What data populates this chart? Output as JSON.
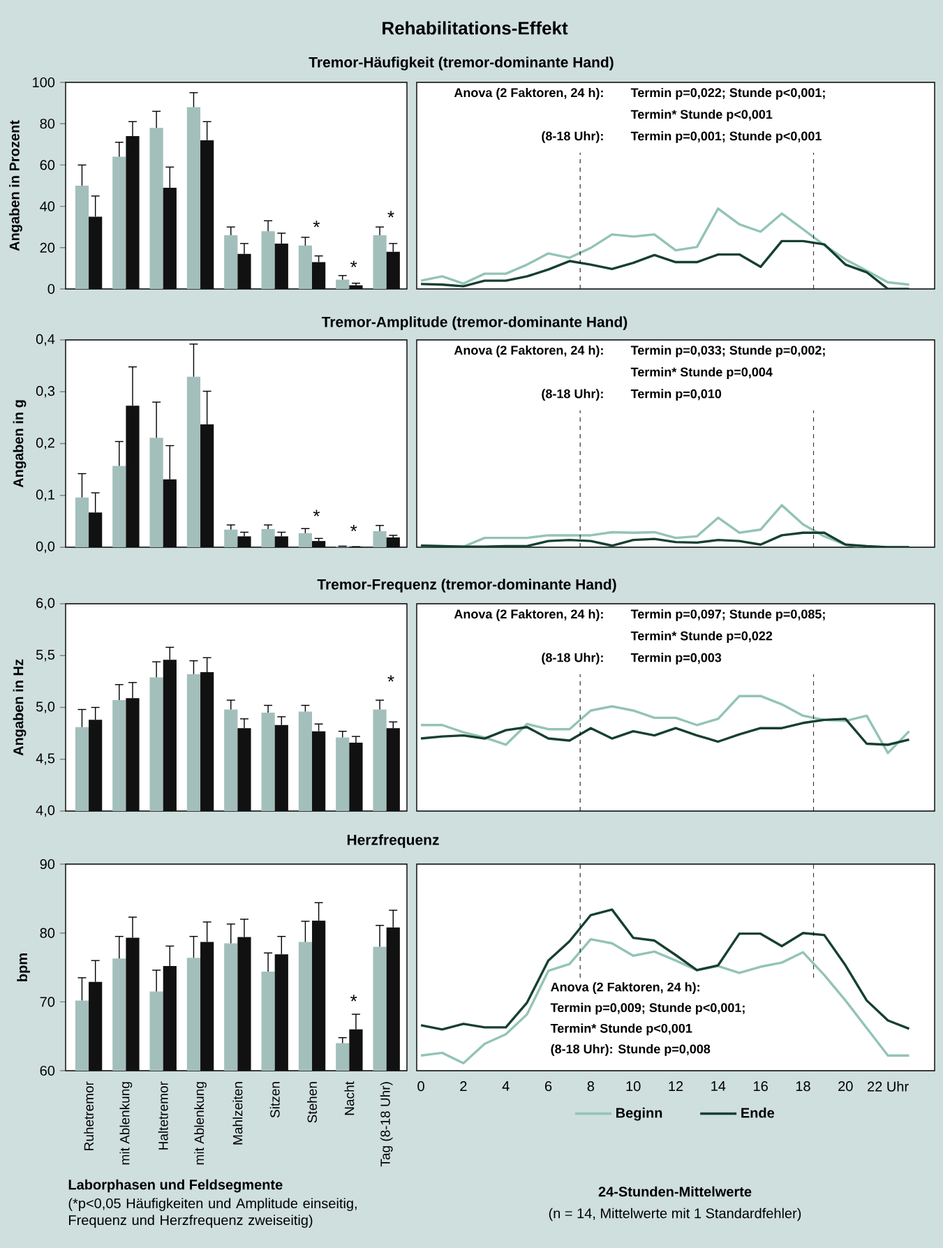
{
  "chart_data": [
    {
      "type": "other",
      "title": "Rehabilitations-Effekt"
    },
    {
      "type": "bar",
      "title": "Tremor-Häufigkeit (tremor-dominante Hand)",
      "ylabel": "Angaben in Prozent",
      "categories": [
        null,
        null,
        null,
        null,
        null,
        null,
        null,
        null,
        null
      ],
      "series": [
        {
          "color": "#a3bfbb",
          "values": [
            50,
            64,
            78,
            88,
            26,
            28,
            21,
            4.5,
            26
          ],
          "errors": [
            [
              50,
              60
            ],
            [
              64,
              71
            ],
            [
              78,
              86
            ],
            [
              88,
              95
            ],
            [
              26,
              30
            ],
            [
              28,
              33
            ],
            [
              21,
              25
            ],
            [
              4.5,
              6.5
            ],
            [
              26,
              30
            ]
          ]
        },
        {
          "color": "#111111",
          "values": [
            35,
            74,
            49,
            72,
            17,
            22,
            13,
            1.8,
            18
          ],
          "errors": [
            [
              35,
              45
            ],
            [
              74,
              81
            ],
            [
              49,
              59
            ],
            [
              72,
              81
            ],
            [
              17,
              22
            ],
            [
              22,
              27
            ],
            [
              13,
              16
            ],
            [
              1.8,
              2.8
            ],
            [
              18,
              22
            ]
          ]
        }
      ],
      "ylim": [
        0,
        100
      ],
      "yticks": [
        0,
        20,
        40,
        60,
        80,
        100
      ],
      "tick_labels": "y",
      "annotations": [
        "*",
        "*",
        "*"
      ]
    },
    {
      "type": "line",
      "x": [
        0,
        1,
        2,
        3,
        4,
        5,
        6,
        7,
        8,
        9,
        10,
        11,
        12,
        13,
        14,
        15,
        16,
        17,
        18,
        19,
        20,
        21,
        22,
        23
      ],
      "series": [
        {
          "color": "#93c3b8",
          "values": [
            4.0,
            6.1,
            2.6,
            7.4,
            7.4,
            11.8,
            17.2,
            15.1,
            19.9,
            26.4,
            25.4,
            26.4,
            18.7,
            20.3,
            38.9,
            31.3,
            27.7,
            36.5,
            28.9,
            21.2,
            14.3,
            8.9,
            3.2,
            2.1
          ]
        },
        {
          "color": "#16402f",
          "values": [
            2.4,
            2.1,
            1.3,
            4.0,
            4.0,
            6.1,
            9.4,
            13.5,
            11.8,
            9.7,
            12.6,
            16.4,
            13.0,
            13.0,
            16.7,
            16.7,
            10.7,
            23.2,
            23.2,
            21.6,
            11.8,
            8.1,
            0.0,
            0.0
          ]
        }
      ],
      "xlim": [
        -0.2,
        24.2
      ],
      "ylim": [
        0,
        100
      ],
      "tick_labels": false,
      "line_style": "solid",
      "ref_lines": [
        {
          "axis": "x",
          "value": 7.5,
          "color": "#000000",
          "line_style": "dashed"
        },
        {
          "axis": "x",
          "value": 18.5,
          "color": "#000000",
          "line_style": "dashed"
        }
      ],
      "annotations": [
        "Anova (2 Faktoren, 24 h):",
        "Termin p=0,022; Stunde p<0,001;",
        "Termin* Stunde p<0,001",
        "(8-18 Uhr):",
        "Termin p=0,001; Stunde p<0,001"
      ]
    },
    {
      "type": "bar",
      "title": "Tremor-Amplitude (tremor-dominante Hand)",
      "ylabel": "Angaben in g",
      "categories": [
        null,
        null,
        null,
        null,
        null,
        null,
        null,
        null,
        null
      ],
      "series": [
        {
          "color": "#a3bfbb",
          "values": [
            0.096,
            0.157,
            0.211,
            0.329,
            0.034,
            0.035,
            0.027,
            0.002,
            0.031
          ],
          "errors": [
            [
              0.096,
              0.142
            ],
            [
              0.157,
              0.204
            ],
            [
              0.211,
              0.28
            ],
            [
              0.329,
              0.392
            ],
            [
              0.034,
              0.043
            ],
            [
              0.035,
              0.043
            ],
            [
              0.027,
              0.036
            ],
            null,
            [
              0.031,
              0.042
            ]
          ]
        },
        {
          "color": "#111111",
          "values": [
            0.067,
            0.273,
            0.131,
            0.237,
            0.021,
            0.021,
            0.012,
            0.001,
            0.019
          ],
          "errors": [
            [
              0.067,
              0.105
            ],
            [
              0.273,
              0.348
            ],
            [
              0.131,
              0.196
            ],
            [
              0.237,
              0.301
            ],
            [
              0.021,
              0.029
            ],
            [
              0.021,
              0.029
            ],
            [
              0.012,
              0.017
            ],
            null,
            [
              0.019,
              0.023
            ]
          ]
        }
      ],
      "ylim": [
        0,
        0.4
      ],
      "yticks": [
        {
          "value": 0,
          "label": "0,0"
        },
        {
          "value": 0.1,
          "label": "0,1"
        },
        {
          "value": 0.2,
          "label": "0,2"
        },
        {
          "value": 0.3,
          "label": "0,3"
        },
        {
          "value": 0.4,
          "label": "0,4"
        }
      ],
      "tick_labels": "y",
      "annotations": [
        "*",
        "*"
      ]
    },
    {
      "type": "line",
      "x": [
        0,
        1,
        2,
        3,
        4,
        5,
        6,
        7,
        8,
        9,
        10,
        11,
        12,
        13,
        14,
        15,
        16,
        17,
        18,
        19,
        20,
        21,
        22,
        23
      ],
      "series": [
        {
          "color": "#93c3b8",
          "values": [
            0.003,
            0.002,
            0.001,
            0.018,
            0.018,
            0.018,
            0.023,
            0.023,
            0.023,
            0.029,
            0.028,
            0.029,
            0.018,
            0.021,
            0.057,
            0.028,
            0.034,
            0.081,
            0.044,
            0.021,
            0.005,
            0.0,
            0.0,
            0.0
          ]
        },
        {
          "color": "#16402f",
          "values": [
            0.003,
            0.002,
            0.001,
            0.001,
            0.002,
            0.002,
            0.012,
            0.014,
            0.012,
            0.003,
            0.014,
            0.016,
            0.01,
            0.009,
            0.014,
            0.012,
            0.005,
            0.023,
            0.028,
            0.028,
            0.005,
            0.002,
            0.0,
            0.0
          ]
        }
      ],
      "xlim": [
        -0.2,
        24.2
      ],
      "ylim": [
        0,
        0.4
      ],
      "tick_labels": false,
      "line_style": "solid",
      "ref_lines": [
        {
          "axis": "x",
          "value": 7.5,
          "color": "#000000",
          "line_style": "dashed"
        },
        {
          "axis": "x",
          "value": 18.5,
          "color": "#000000",
          "line_style": "dashed"
        }
      ],
      "annotations": [
        "Anova (2 Faktoren, 24 h):",
        "Termin p=0,033; Stunde p=0,002;",
        "Termin* Stunde p=0,004",
        "(8-18 Uhr):",
        "Termin p=0,010"
      ]
    },
    {
      "type": "bar",
      "title": "Tremor-Frequenz (tremor-dominante Hand)",
      "ylabel": "Angaben in Hz",
      "categories": [
        null,
        null,
        null,
        null,
        null,
        null,
        null,
        null,
        null
      ],
      "series": [
        {
          "color": "#a3bfbb",
          "values": [
            4.81,
            5.07,
            5.29,
            5.32,
            4.98,
            4.95,
            4.96,
            4.71,
            4.98
          ],
          "errors": [
            [
              4.81,
              4.98
            ],
            [
              5.07,
              5.22
            ],
            [
              5.29,
              5.44
            ],
            [
              5.32,
              5.45
            ],
            [
              4.98,
              5.07
            ],
            [
              4.95,
              5.02
            ],
            [
              4.96,
              5.02
            ],
            [
              4.71,
              4.77
            ],
            [
              4.98,
              5.07
            ]
          ]
        },
        {
          "color": "#111111",
          "values": [
            4.88,
            5.09,
            5.46,
            5.34,
            4.8,
            4.83,
            4.77,
            4.66,
            4.8
          ],
          "errors": [
            [
              4.88,
              5.0
            ],
            [
              5.09,
              5.24
            ],
            [
              5.46,
              5.58
            ],
            [
              5.34,
              5.48
            ],
            [
              4.8,
              4.89
            ],
            [
              4.83,
              4.91
            ],
            [
              4.77,
              4.84
            ],
            [
              4.66,
              4.72
            ],
            [
              4.8,
              4.86
            ]
          ]
        }
      ],
      "ylim": [
        4,
        6
      ],
      "yticks": [
        {
          "value": 4,
          "label": "4,0"
        },
        {
          "value": 4.5,
          "label": "4,5"
        },
        {
          "value": 5,
          "label": "5,0"
        },
        {
          "value": 5.5,
          "label": "5,5"
        },
        {
          "value": 6,
          "label": "6,0"
        }
      ],
      "tick_labels": "y",
      "annotations": [
        "*"
      ]
    },
    {
      "type": "line",
      "x": [
        0,
        1,
        2,
        3,
        4,
        5,
        6,
        7,
        8,
        9,
        10,
        11,
        12,
        13,
        14,
        15,
        16,
        17,
        18,
        19,
        20,
        21,
        22,
        23
      ],
      "series": [
        {
          "color": "#93c3b8",
          "values": [
            4.83,
            4.83,
            4.76,
            4.71,
            4.64,
            4.84,
            4.79,
            4.79,
            4.97,
            5.01,
            4.97,
            4.9,
            4.9,
            4.83,
            4.89,
            5.11,
            5.11,
            5.03,
            4.92,
            4.88,
            4.87,
            4.92,
            4.56,
            4.77
          ]
        },
        {
          "color": "#16402f",
          "values": [
            4.7,
            4.72,
            4.73,
            4.7,
            4.78,
            4.81,
            4.7,
            4.68,
            4.8,
            4.7,
            4.77,
            4.73,
            4.8,
            4.73,
            4.67,
            4.74,
            4.8,
            4.8,
            4.85,
            4.88,
            4.89,
            4.65,
            4.64,
            4.69
          ]
        }
      ],
      "xlim": [
        -0.2,
        24.2
      ],
      "ylim": [
        4,
        6
      ],
      "tick_labels": false,
      "line_style": "solid",
      "ref_lines": [
        {
          "axis": "x",
          "value": 7.5,
          "color": "#000000",
          "line_style": "dashed"
        },
        {
          "axis": "x",
          "value": 18.5,
          "color": "#000000",
          "line_style": "dashed"
        }
      ],
      "annotations": [
        "Anova (2 Faktoren, 24 h):",
        "Termin p=0,097; Stunde p=0,085;",
        "Termin* Stunde p=0,022",
        "(8-18 Uhr):",
        "Termin p=0,003"
      ]
    },
    {
      "type": "bar",
      "title": "Herzfrequenz",
      "ylabel": "bpm",
      "xlabel": "Laborphasen und Feldsegmente",
      "categories": [
        "Ruhetremor",
        "mit Ablenkung",
        "Haltetremor",
        "mit Ablenkung",
        "Mahlzeiten",
        "Sitzen",
        "Stehen",
        "Nacht",
        "Tag (8-18 Uhr)"
      ],
      "series": [
        {
          "color": "#a3bfbb",
          "values": [
            70.2,
            76.3,
            71.5,
            76.4,
            78.5,
            74.4,
            78.7,
            64.0,
            78.0
          ],
          "errors": [
            [
              70.2,
              73.5
            ],
            [
              76.3,
              79.5
            ],
            [
              71.5,
              74.6
            ],
            [
              76.4,
              79.5
            ],
            [
              78.5,
              81.3
            ],
            [
              74.4,
              77.1
            ],
            [
              78.7,
              81.7
            ],
            [
              64.0,
              64.8
            ],
            [
              78.0,
              81.1
            ]
          ]
        },
        {
          "color": "#111111",
          "values": [
            72.9,
            79.3,
            75.2,
            78.7,
            79.4,
            76.9,
            81.8,
            66.0,
            80.8
          ],
          "errors": [
            [
              72.9,
              76.0
            ],
            [
              79.3,
              82.3
            ],
            [
              75.2,
              78.1
            ],
            [
              78.7,
              81.6
            ],
            [
              79.4,
              82.0
            ],
            [
              76.9,
              79.5
            ],
            [
              81.8,
              84.4
            ],
            [
              66.0,
              68.2
            ],
            [
              80.8,
              83.3
            ]
          ]
        }
      ],
      "ylim": [
        60,
        90
      ],
      "yticks": [
        60,
        70,
        80,
        90
      ],
      "annotations": [
        "*",
        "(*p<0,05 Häufigkeiten und Amplitude einseitig, Frequenz und Herzfrequenz zweiseitig)"
      ]
    },
    {
      "type": "line",
      "xlabel": "24-Stunden-Mittelwerte",
      "x": [
        0,
        1,
        2,
        3,
        4,
        5,
        6,
        7,
        8,
        9,
        10,
        11,
        12,
        13,
        14,
        15,
        16,
        17,
        18,
        19,
        20,
        21,
        22,
        23
      ],
      "series": [
        {
          "name": "Beginn",
          "color": "#93c3b8",
          "values": [
            62.2,
            62.6,
            61.1,
            63.9,
            65.3,
            68.2,
            74.5,
            75.5,
            79.1,
            78.5,
            76.7,
            77.3,
            76.0,
            74.6,
            75.2,
            74.2,
            75.1,
            75.7,
            77.2,
            73.9,
            70.2,
            66.2,
            62.2,
            62.2
          ]
        },
        {
          "name": "Ende",
          "color": "#16402f",
          "values": [
            66.6,
            66.0,
            66.8,
            66.3,
            66.3,
            69.9,
            76.0,
            78.8,
            82.6,
            83.4,
            79.3,
            78.9,
            76.8,
            74.6,
            75.3,
            79.9,
            79.9,
            78.1,
            80.0,
            79.7,
            75.3,
            70.2,
            67.3,
            66.1
          ]
        }
      ],
      "xlim": [
        -0.2,
        24.2
      ],
      "ylim": [
        60,
        90
      ],
      "xticks": [
        0,
        2,
        4,
        6,
        8,
        10,
        12,
        14,
        16,
        18,
        20,
        {
          "value": 22,
          "label": "22 Uhr"
        }
      ],
      "tick_labels": "x",
      "legend": "bottom",
      "line_style": "solid",
      "ref_lines": [
        {
          "axis": "x",
          "value": 7.5,
          "color": "#000000",
          "line_style": "dashed"
        },
        {
          "axis": "x",
          "value": 18.5,
          "color": "#000000",
          "line_style": "dashed"
        }
      ],
      "annotations": [
        "Anova (2 Faktoren, 24 h):",
        "Termin p=0,009; Stunde p<0,001;",
        "Termin* Stunde p<0,001",
        "(8-18 Uhr): Stunde p=0,008",
        "(n = 14, Mittelwerte mit 1 Standardfehler)"
      ]
    }
  ]
}
